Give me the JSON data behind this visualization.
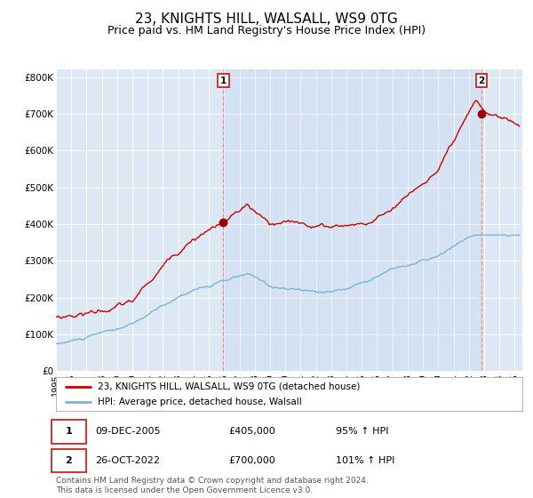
{
  "title": "23, KNIGHTS HILL, WALSALL, WS9 0TG",
  "subtitle": "Price paid vs. HM Land Registry's House Price Index (HPI)",
  "title_fontsize": 11,
  "subtitle_fontsize": 9,
  "ylabel_ticks": [
    "£0",
    "£100K",
    "£200K",
    "£300K",
    "£400K",
    "£500K",
    "£600K",
    "£700K",
    "£800K"
  ],
  "ytick_values": [
    0,
    100000,
    200000,
    300000,
    400000,
    500000,
    600000,
    700000,
    800000
  ],
  "ylim": [
    0,
    820000
  ],
  "xlim_start": 1995.0,
  "xlim_end": 2025.5,
  "background_color": "#dde8f5",
  "plot_bg_color": "#dde8f5",
  "grid_color": "#ffffff",
  "hpi_line_color": "#7ab4d8",
  "price_line_color": "#cc0000",
  "marker_color": "#990000",
  "dashed_line_color": "#ee8888",
  "annotation_box_color": "#cc2222",
  "legend_label_price": "23, KNIGHTS HILL, WALSALL, WS9 0TG (detached house)",
  "legend_label_hpi": "HPI: Average price, detached house, Walsall",
  "sale1_date": 2005.94,
  "sale1_price": 405000,
  "sale1_label": "1",
  "sale1_display": "09-DEC-2005",
  "sale1_price_display": "£405,000",
  "sale1_hpi": "95% ↑ HPI",
  "sale2_date": 2022.82,
  "sale2_price": 700000,
  "sale2_label": "2",
  "sale2_display": "26-OCT-2022",
  "sale2_price_display": "£700,000",
  "sale2_hpi": "101% ↑ HPI",
  "footnote": "Contains HM Land Registry data © Crown copyright and database right 2024.\nThis data is licensed under the Open Government Licence v3.0.",
  "footnote_fontsize": 6.5
}
